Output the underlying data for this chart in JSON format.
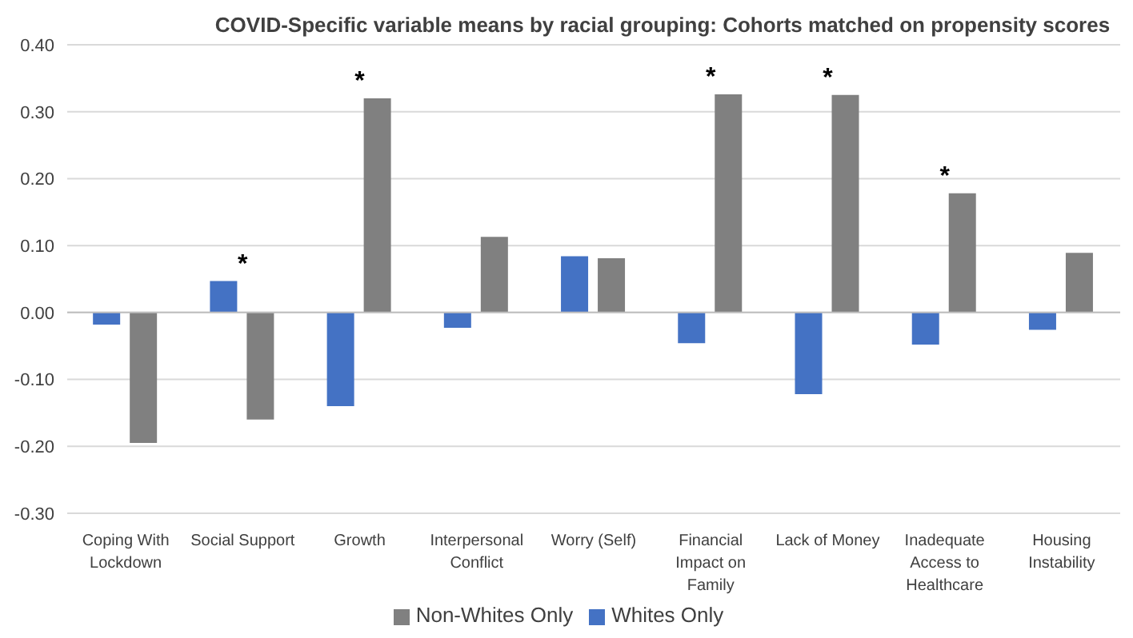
{
  "chart_data": {
    "type": "bar",
    "title": "COVID-Specific variable means by racial grouping: Cohorts matched  on propensity scores",
    "categories": [
      "Coping With Lockdown",
      "Social Support",
      "Growth",
      "Interpersonal Conflict",
      "Worry (Self)",
      "Financial Impact on Family",
      "Lack of Money",
      "Inadequate Access to Healthcare",
      "Housing Instability"
    ],
    "series": [
      {
        "name": "Whites Only",
        "color": "#4472c4",
        "values": [
          -0.018,
          0.047,
          -0.14,
          -0.023,
          0.084,
          -0.046,
          -0.122,
          -0.048,
          -0.026
        ]
      },
      {
        "name": "Non-Whites Only",
        "color": "#808080",
        "values": [
          -0.195,
          -0.16,
          0.32,
          0.113,
          0.081,
          0.326,
          0.325,
          0.178,
          0.089
        ]
      }
    ],
    "ylim": [
      -0.3,
      0.4
    ],
    "yticks": [
      {
        "value": -0.3,
        "label": "-0.30"
      },
      {
        "value": -0.2,
        "label": "-0.20"
      },
      {
        "value": -0.1,
        "label": "-0.10"
      },
      {
        "value": 0,
        "label": "0.00"
      },
      {
        "value": 0.1,
        "label": "0.10"
      },
      {
        "value": 0.2,
        "label": "0.20"
      },
      {
        "value": 0.3,
        "label": "0.30"
      },
      {
        "value": 0.4,
        "label": "0.40"
      }
    ],
    "grid": "y",
    "legend": "bottom",
    "annotations": [
      {
        "text": "*",
        "x": "Social Support",
        "y": 0.047
      },
      {
        "text": "*",
        "x": "Growth",
        "y": 0.32
      },
      {
        "text": "*",
        "x": "Financial Impact on Family",
        "y": 0.326
      },
      {
        "text": "*",
        "x": "Lack of Money",
        "y": 0.325
      },
      {
        "text": "*",
        "x": "Inadequate Access to Healthcare",
        "y": 0.178
      }
    ]
  }
}
